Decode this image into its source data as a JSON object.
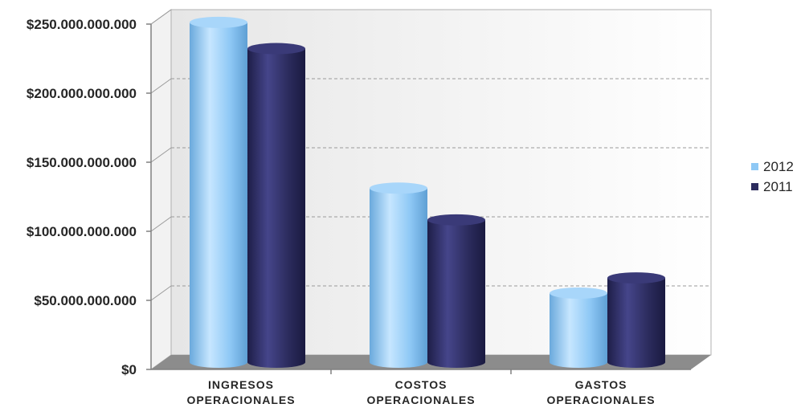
{
  "chart_data": {
    "type": "bar",
    "title": "",
    "xlabel": "",
    "ylabel": "",
    "categories": [
      [
        "INGRESOS",
        "OPERACIONALES"
      ],
      [
        "COSTOS",
        "OPERACIONALES"
      ],
      [
        "GASTOS",
        "OPERACIONALES"
      ]
    ],
    "series": [
      {
        "name": "2012",
        "color": "#8ec8f5",
        "values": [
          246000000000,
          126000000000,
          50000000000
        ]
      },
      {
        "name": "2011",
        "color": "#2c2c5e",
        "values": [
          227000000000,
          103000000000,
          61000000000
        ]
      }
    ],
    "ylim": [
      0,
      250000000000
    ],
    "yticks": [
      {
        "value": 0,
        "label": "$0"
      },
      {
        "value": 50000000000,
        "label": "$50.000.000.000"
      },
      {
        "value": 100000000000,
        "label": "$100.000.000.000"
      },
      {
        "value": 150000000000,
        "label": "$150.000.000.000"
      },
      {
        "value": 200000000000,
        "label": "$200.000.000.000"
      },
      {
        "value": 250000000000,
        "label": "$250.000.000.000"
      }
    ],
    "grid": true,
    "legend_position": "right"
  }
}
